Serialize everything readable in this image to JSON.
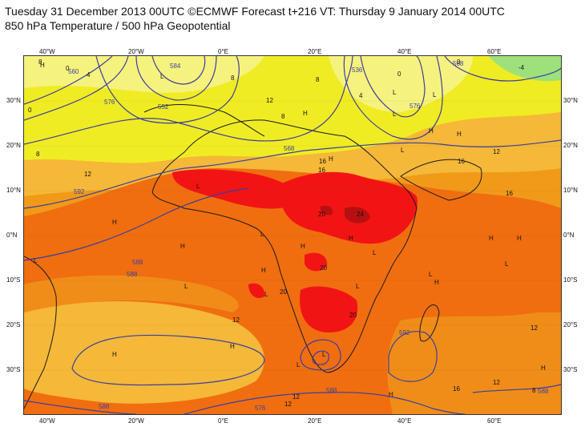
{
  "title": {
    "line1": "Tuesday 31 December 2013 00UTC ©ECMWF Forecast t+216 VT: Thursday 9 January 2014 00UTC",
    "line2": "850 hPa Temperature / 500 hPa Geopotential"
  },
  "axes": {
    "lon_labels": [
      "40°W",
      "20°W",
      "0°E",
      "20°E",
      "40°E",
      "60°E"
    ],
    "lat_labels": [
      "30°N",
      "20°N",
      "10°N",
      "0°N",
      "10°S",
      "20°S",
      "30°S"
    ]
  },
  "colors": {
    "ocean_base": "#f19a1a",
    "yellow": "#f0ec24",
    "pale_yellow": "#f6f27e",
    "light_orange": "#f5b838",
    "orange": "#f08d18",
    "dark_orange": "#f06e10",
    "red": "#f21414",
    "dark_red": "#b81010",
    "green": "#9ee07a",
    "contour": "#3b3f9e",
    "coast": "#1a1a1a"
  },
  "temperature_labels": [
    "8",
    "0",
    "4",
    "8",
    "8",
    "12",
    "8",
    "0",
    "4",
    "0",
    "-4",
    "0",
    "8",
    "12",
    "16",
    "16",
    "20",
    "24",
    "20",
    "20",
    "20",
    "12",
    "12",
    "16",
    "12",
    "16",
    "12",
    "8",
    "12",
    "16",
    "12"
  ],
  "geopotential_labels": [
    "560",
    "576",
    "552",
    "584",
    "536",
    "576",
    "568",
    "568",
    "592",
    "592",
    "588",
    "588",
    "588",
    "576",
    "588",
    "588"
  ],
  "pressure_markers": [
    "H",
    "L",
    "L",
    "L",
    "H",
    "H",
    "H",
    "L",
    "H",
    "L",
    "L",
    "H",
    "H",
    "L",
    "L",
    "H",
    "H",
    "L",
    "L",
    "L",
    "H",
    "L",
    "L",
    "H",
    "H",
    "L",
    "H",
    "H",
    "H",
    "L",
    "L",
    "H",
    "H"
  ]
}
